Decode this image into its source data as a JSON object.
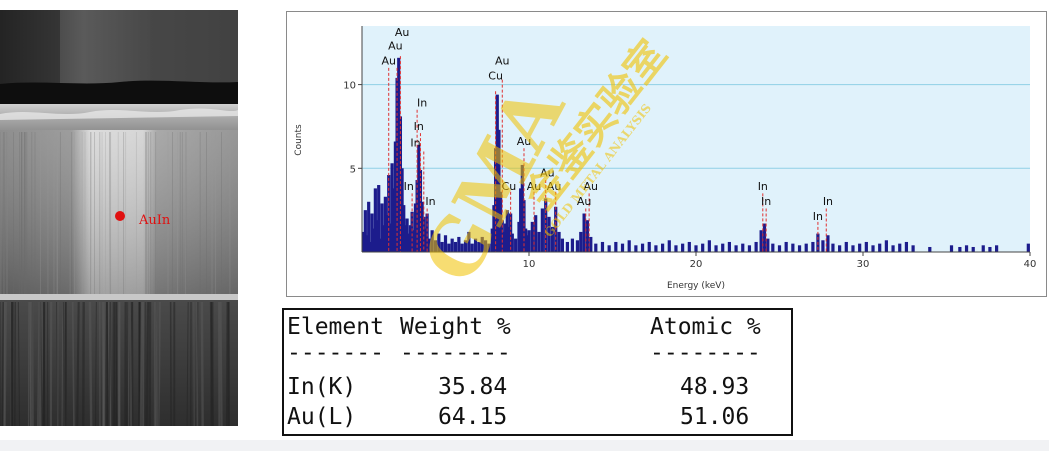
{
  "micrograph": {
    "spot_label": "AuIn"
  },
  "chart_data": {
    "type": "bar",
    "xlabel": "Energy (keV)",
    "ylabel": "Counts",
    "xlim": [
      0,
      40
    ],
    "ylim": [
      0,
      13.5
    ],
    "xticks": [
      10,
      20,
      30,
      40
    ],
    "yticks": [
      5,
      10
    ],
    "grid": true,
    "peak_lines": [
      {
        "x": 1.6,
        "y": 11.0
      },
      {
        "x": 2.3,
        "y": 11.7
      },
      {
        "x": 2.1,
        "y": 11.0
      },
      {
        "x": 3.3,
        "y": 8.5
      },
      {
        "x": 3.5,
        "y": 7.1
      },
      {
        "x": 3.7,
        "y": 6.0
      },
      {
        "x": 3.0,
        "y": 3.5
      },
      {
        "x": 3.9,
        "y": 2.6
      },
      {
        "x": 8.0,
        "y": 9.6
      },
      {
        "x": 8.4,
        "y": 10.3
      },
      {
        "x": 8.9,
        "y": 3.6
      },
      {
        "x": 9.7,
        "y": 6.2
      },
      {
        "x": 10.3,
        "y": 3.6
      },
      {
        "x": 11.0,
        "y": 4.3
      },
      {
        "x": 11.6,
        "y": 3.6
      },
      {
        "x": 13.4,
        "y": 2.6
      },
      {
        "x": 13.6,
        "y": 3.5
      },
      {
        "x": 24.0,
        "y": 3.5
      },
      {
        "x": 24.2,
        "y": 2.6
      },
      {
        "x": 27.3,
        "y": 1.8
      },
      {
        "x": 27.8,
        "y": 2.6
      }
    ],
    "peak_labels": [
      {
        "text": "Au",
        "x": 2.4,
        "y": 12.9
      },
      {
        "text": "Au",
        "x": 2.0,
        "y": 12.1
      },
      {
        "text": "Au",
        "x": 1.6,
        "y": 11.2
      },
      {
        "text": "In",
        "x": 3.6,
        "y": 8.7
      },
      {
        "text": "In",
        "x": 3.4,
        "y": 7.3
      },
      {
        "text": "In",
        "x": 3.2,
        "y": 6.3
      },
      {
        "text": "In",
        "x": 2.8,
        "y": 3.7
      },
      {
        "text": "In",
        "x": 4.1,
        "y": 2.8
      },
      {
        "text": "Au",
        "x": 8.4,
        "y": 11.2
      },
      {
        "text": "Cu",
        "x": 8.0,
        "y": 10.3
      },
      {
        "text": "Au",
        "x": 9.7,
        "y": 6.4
      },
      {
        "text": "Cu",
        "x": 8.8,
        "y": 3.7
      },
      {
        "text": "Au",
        "x": 11.1,
        "y": 4.5
      },
      {
        "text": "Au",
        "x": 10.3,
        "y": 3.7
      },
      {
        "text": "Au",
        "x": 11.5,
        "y": 3.7
      },
      {
        "text": "Au",
        "x": 13.7,
        "y": 3.7
      },
      {
        "text": "Au",
        "x": 13.3,
        "y": 2.8
      },
      {
        "text": "In",
        "x": 24.0,
        "y": 3.7
      },
      {
        "text": "In",
        "x": 24.2,
        "y": 2.8
      },
      {
        "text": "In",
        "x": 27.9,
        "y": 2.8
      },
      {
        "text": "In",
        "x": 27.3,
        "y": 1.9
      }
    ],
    "spectrum": [
      [
        0.1,
        1.2
      ],
      [
        0.2,
        2.5
      ],
      [
        0.3,
        1.0
      ],
      [
        0.4,
        3.0
      ],
      [
        0.5,
        0.6
      ],
      [
        0.6,
        2.3
      ],
      [
        0.7,
        1.4
      ],
      [
        0.8,
        3.8
      ],
      [
        0.9,
        1.9
      ],
      [
        1.0,
        4.0
      ],
      [
        1.1,
        0.8
      ],
      [
        1.2,
        2.9
      ],
      [
        1.3,
        1.6
      ],
      [
        1.4,
        3.3
      ],
      [
        1.5,
        2.2
      ],
      [
        1.6,
        4.6
      ],
      [
        1.7,
        1.7
      ],
      [
        1.8,
        5.3
      ],
      [
        1.9,
        3.8
      ],
      [
        2.0,
        6.6
      ],
      [
        2.1,
        10.4
      ],
      [
        2.2,
        11.6
      ],
      [
        2.3,
        8.1
      ],
      [
        2.4,
        5.0
      ],
      [
        2.5,
        2.8
      ],
      [
        2.6,
        1.6
      ],
      [
        2.7,
        2.0
      ],
      [
        2.8,
        1.1
      ],
      [
        2.9,
        1.6
      ],
      [
        3.0,
        2.4
      ],
      [
        3.1,
        1.3
      ],
      [
        3.2,
        2.9
      ],
      [
        3.3,
        4.3
      ],
      [
        3.4,
        6.4
      ],
      [
        3.5,
        4.9
      ],
      [
        3.6,
        3.0
      ],
      [
        3.7,
        2.1
      ],
      [
        3.8,
        1.4
      ],
      [
        3.9,
        2.3
      ],
      [
        4.0,
        0.8
      ],
      [
        4.2,
        1.3
      ],
      [
        4.4,
        0.7
      ],
      [
        4.6,
        1.1
      ],
      [
        4.8,
        0.6
      ],
      [
        5.0,
        1.0
      ],
      [
        5.2,
        0.5
      ],
      [
        5.4,
        0.8
      ],
      [
        5.6,
        0.6
      ],
      [
        5.8,
        0.9
      ],
      [
        6.0,
        0.5
      ],
      [
        6.2,
        0.7
      ],
      [
        6.4,
        1.2
      ],
      [
        6.6,
        0.5
      ],
      [
        6.8,
        0.8
      ],
      [
        7.0,
        0.6
      ],
      [
        7.2,
        0.9
      ],
      [
        7.4,
        0.7
      ],
      [
        7.6,
        0.5
      ],
      [
        7.8,
        1.4
      ],
      [
        7.9,
        2.8
      ],
      [
        8.0,
        6.2
      ],
      [
        8.1,
        9.4
      ],
      [
        8.2,
        7.3
      ],
      [
        8.3,
        3.6
      ],
      [
        8.4,
        1.9
      ],
      [
        8.5,
        1.2
      ],
      [
        8.6,
        1.7
      ],
      [
        8.7,
        2.5
      ],
      [
        8.8,
        1.5
      ],
      [
        8.9,
        2.3
      ],
      [
        9.0,
        1.1
      ],
      [
        9.2,
        0.8
      ],
      [
        9.4,
        1.8
      ],
      [
        9.5,
        3.8
      ],
      [
        9.6,
        5.2
      ],
      [
        9.7,
        3.1
      ],
      [
        9.8,
        1.4
      ],
      [
        9.9,
        1.0
      ],
      [
        10.0,
        1.3
      ],
      [
        10.2,
        1.8
      ],
      [
        10.4,
        2.2
      ],
      [
        10.6,
        1.2
      ],
      [
        10.8,
        2.6
      ],
      [
        11.0,
        3.2
      ],
      [
        11.2,
        2.1
      ],
      [
        11.4,
        1.5
      ],
      [
        11.6,
        2.7
      ],
      [
        11.8,
        1.2
      ],
      [
        12.0,
        0.8
      ],
      [
        12.3,
        0.6
      ],
      [
        12.6,
        0.8
      ],
      [
        12.9,
        0.7
      ],
      [
        13.1,
        1.2
      ],
      [
        13.3,
        2.3
      ],
      [
        13.5,
        1.9
      ],
      [
        13.7,
        0.9
      ],
      [
        14.0,
        0.5
      ],
      [
        14.4,
        0.6
      ],
      [
        14.8,
        0.4
      ],
      [
        15.2,
        0.6
      ],
      [
        15.6,
        0.5
      ],
      [
        16.0,
        0.7
      ],
      [
        16.4,
        0.4
      ],
      [
        16.8,
        0.5
      ],
      [
        17.2,
        0.6
      ],
      [
        17.6,
        0.4
      ],
      [
        18.0,
        0.5
      ],
      [
        18.4,
        0.7
      ],
      [
        18.8,
        0.4
      ],
      [
        19.2,
        0.5
      ],
      [
        19.6,
        0.6
      ],
      [
        20.0,
        0.4
      ],
      [
        20.4,
        0.5
      ],
      [
        20.8,
        0.7
      ],
      [
        21.2,
        0.4
      ],
      [
        21.6,
        0.5
      ],
      [
        22.0,
        0.6
      ],
      [
        22.4,
        0.4
      ],
      [
        22.8,
        0.5
      ],
      [
        23.2,
        0.4
      ],
      [
        23.6,
        0.6
      ],
      [
        23.9,
        1.3
      ],
      [
        24.1,
        1.7
      ],
      [
        24.3,
        0.8
      ],
      [
        24.6,
        0.5
      ],
      [
        25.0,
        0.4
      ],
      [
        25.4,
        0.6
      ],
      [
        25.8,
        0.5
      ],
      [
        26.2,
        0.4
      ],
      [
        26.6,
        0.5
      ],
      [
        27.0,
        0.6
      ],
      [
        27.3,
        1.1
      ],
      [
        27.6,
        0.7
      ],
      [
        27.9,
        1.0
      ],
      [
        28.2,
        0.5
      ],
      [
        28.6,
        0.4
      ],
      [
        29.0,
        0.6
      ],
      [
        29.4,
        0.4
      ],
      [
        29.8,
        0.5
      ],
      [
        30.2,
        0.6
      ],
      [
        30.6,
        0.4
      ],
      [
        31.0,
        0.5
      ],
      [
        31.4,
        0.7
      ],
      [
        31.8,
        0.4
      ],
      [
        32.2,
        0.5
      ],
      [
        32.6,
        0.6
      ],
      [
        33.0,
        0.4
      ],
      [
        34.0,
        0.3
      ],
      [
        35.3,
        0.4
      ],
      [
        35.8,
        0.3
      ],
      [
        36.2,
        0.4
      ],
      [
        36.6,
        0.3
      ],
      [
        37.2,
        0.4
      ],
      [
        37.6,
        0.3
      ],
      [
        38.0,
        0.4
      ],
      [
        39.9,
        0.5
      ]
    ]
  },
  "watermark": {
    "main": "GMA",
    "cn": "金鉴实验室",
    "en": "GOLD METAL ANALYSIS"
  },
  "results_table": {
    "headers": {
      "element": "Element",
      "weight": "Weight %",
      "atomic": "Atomic %"
    },
    "dashes": {
      "element": "-------",
      "weight": "--------",
      "atomic": "--------"
    },
    "rows": [
      {
        "element": "In(K)",
        "weight": "35.84",
        "atomic": "48.93"
      },
      {
        "element": "Au(L)",
        "weight": "64.15",
        "atomic": "51.06"
      }
    ]
  }
}
